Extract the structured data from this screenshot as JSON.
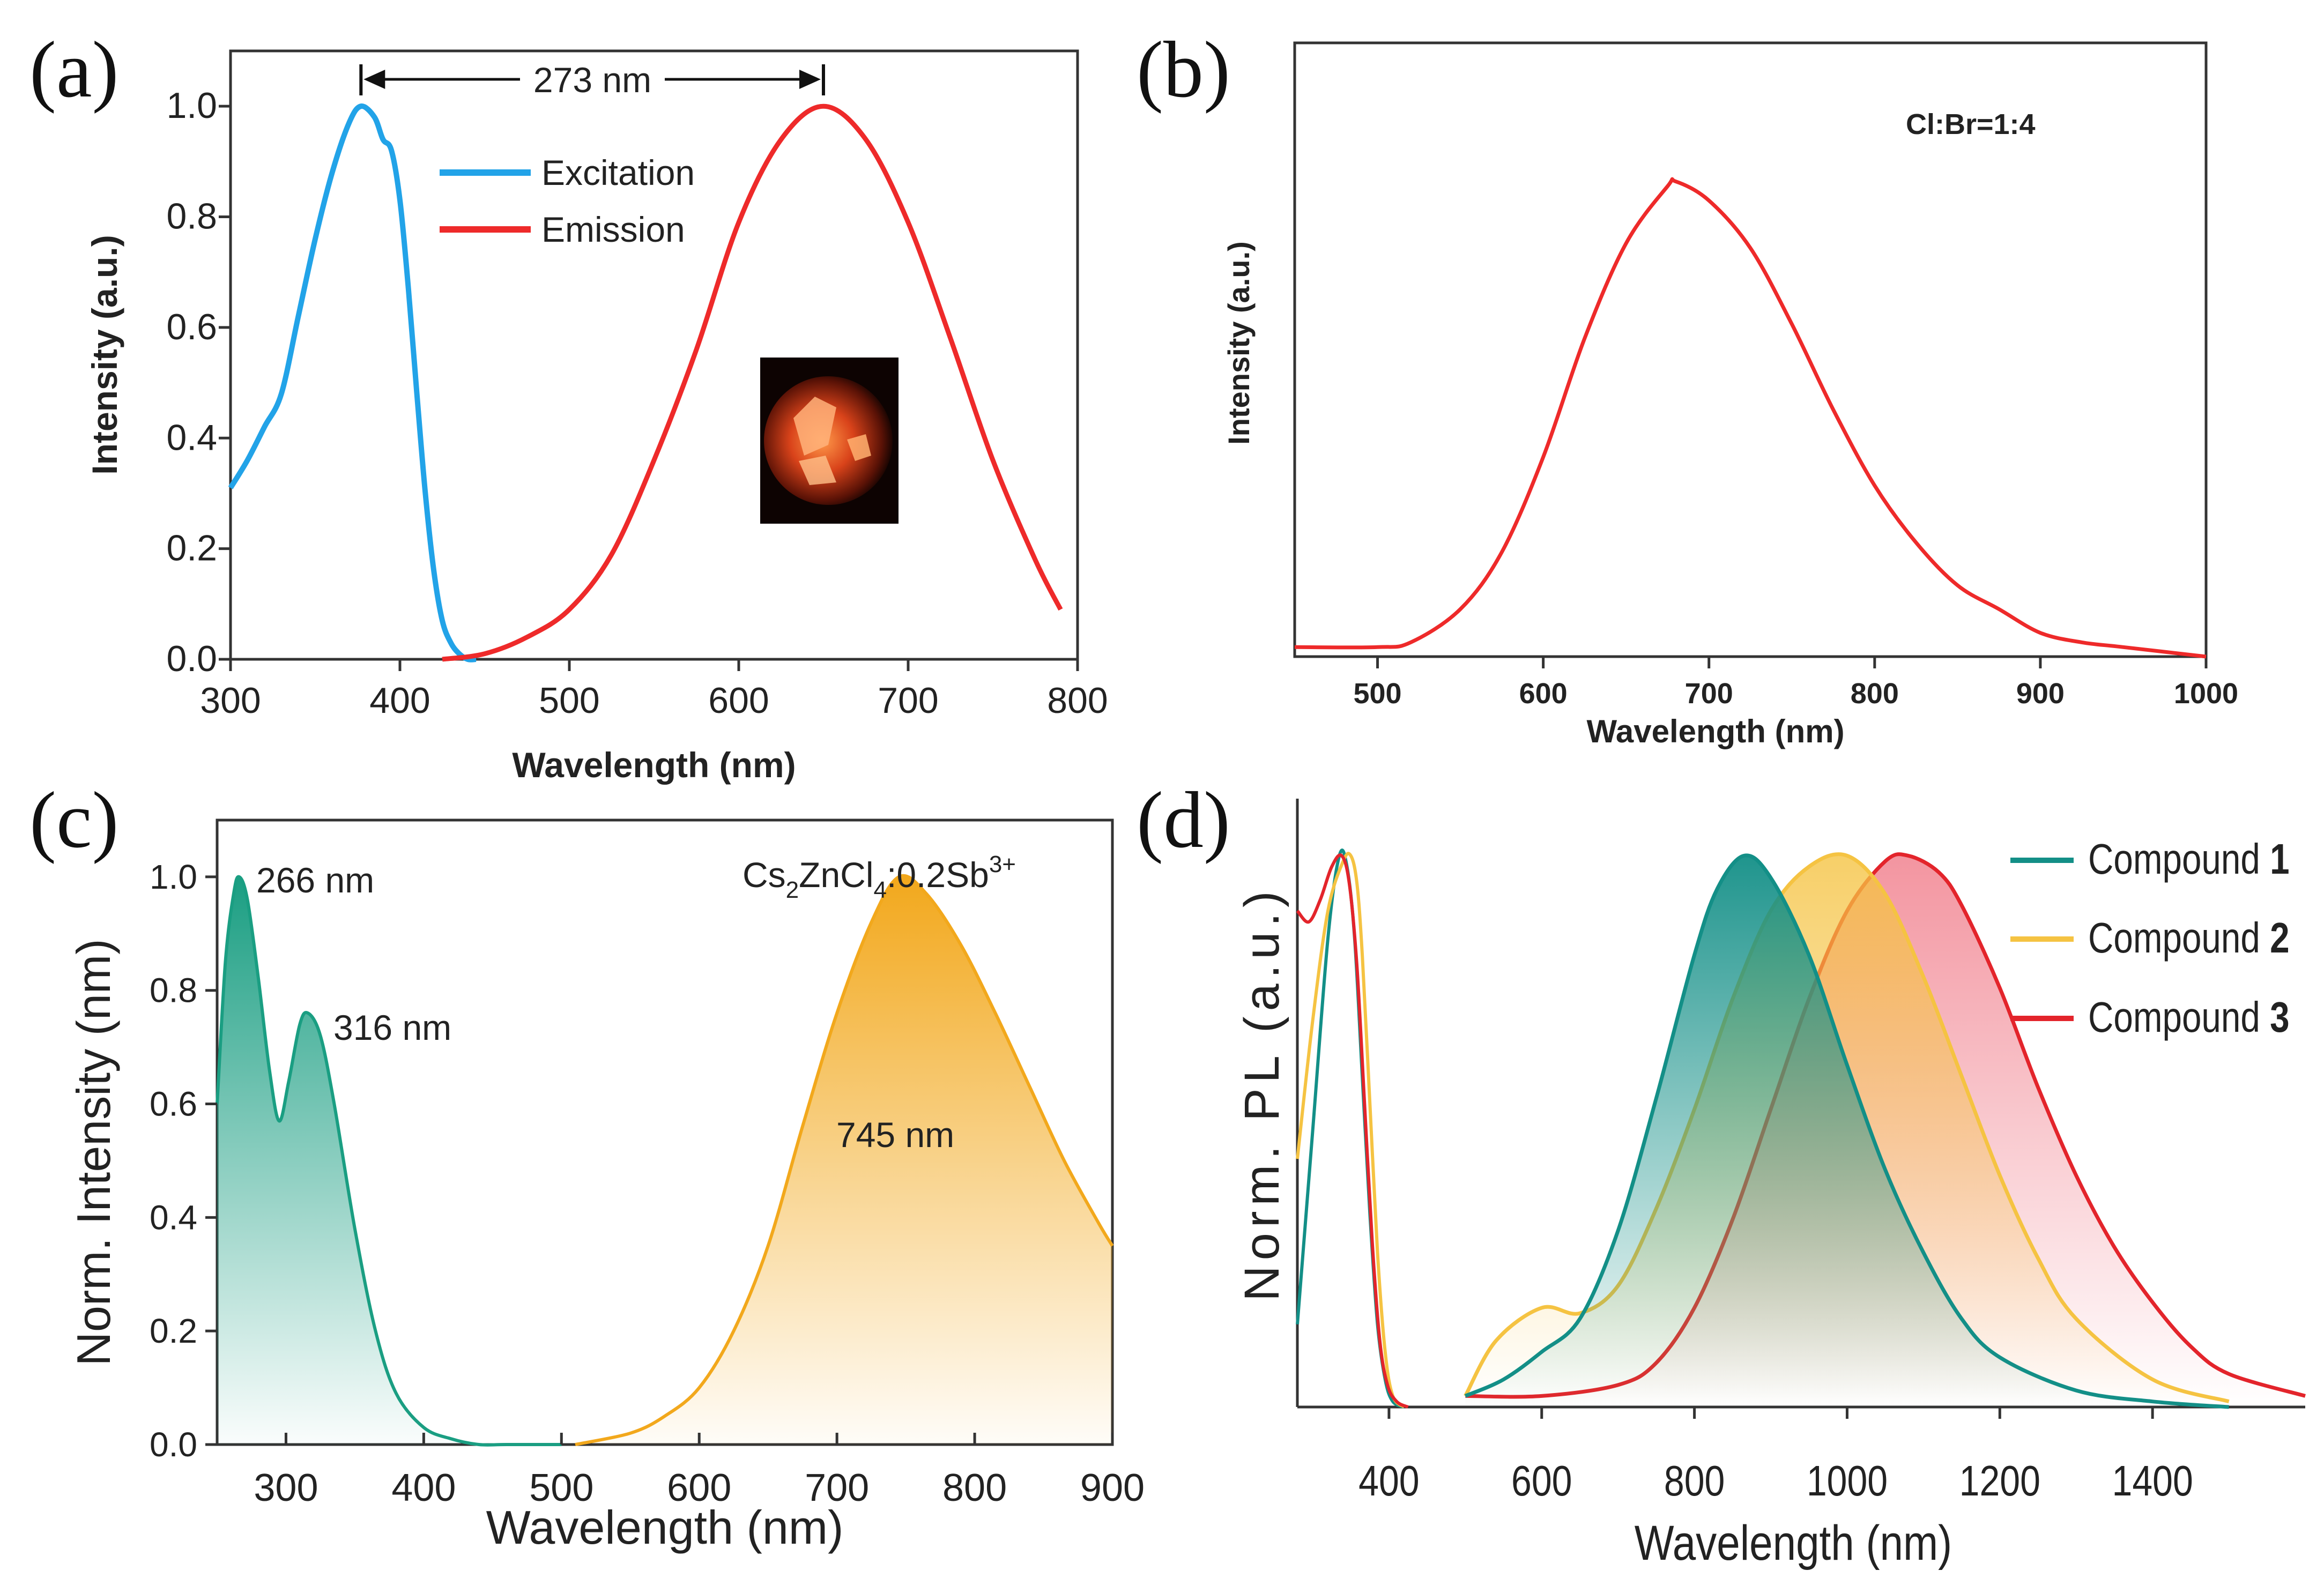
{
  "colors": {
    "excitation": "#22a3e8",
    "emission": "#ee2a2a",
    "teal": "#1a9e82",
    "orange": "#f2a81c",
    "c1": "#138f87",
    "c2": "#f5c342",
    "c3": "#e3242b"
  },
  "chart_data": [
    {
      "panel": "(a)",
      "type": "line",
      "xlabel": "Wavelength (nm)",
      "ylabel": "Intensity (a.u.)",
      "xlim": [
        300,
        800
      ],
      "ylim": [
        0,
        1.1
      ],
      "xticks": [
        300,
        400,
        500,
        600,
        700,
        800
      ],
      "yticks": [
        "0.0",
        "0.2",
        "0.4",
        "0.6",
        "0.8",
        "1.0"
      ],
      "legend": {
        "position": "top-center",
        "entries": [
          "Excitation",
          "Emission"
        ]
      },
      "annotation": "273 nm",
      "annotation_span": [
        377,
        650
      ],
      "inset": "photo of red-emitting crystals",
      "series": [
        {
          "name": "Excitation",
          "color_key": "excitation",
          "x": [
            300,
            310,
            320,
            330,
            340,
            350,
            360,
            370,
            377,
            385,
            390,
            395,
            400,
            405,
            410,
            415,
            420,
            425,
            430,
            435,
            440,
            445
          ],
          "y": [
            0.31,
            0.36,
            0.42,
            0.48,
            0.62,
            0.76,
            0.88,
            0.97,
            1.0,
            0.98,
            0.94,
            0.92,
            0.83,
            0.67,
            0.48,
            0.3,
            0.16,
            0.07,
            0.03,
            0.01,
            0.0,
            0.0
          ]
        },
        {
          "name": "Emission",
          "color_key": "emission",
          "x": [
            425,
            450,
            475,
            500,
            525,
            550,
            575,
            600,
            625,
            650,
            675,
            700,
            725,
            750,
            775,
            790
          ],
          "y": [
            0.0,
            0.01,
            0.04,
            0.09,
            0.19,
            0.36,
            0.56,
            0.79,
            0.94,
            1.0,
            0.94,
            0.79,
            0.58,
            0.36,
            0.18,
            0.09
          ]
        }
      ]
    },
    {
      "panel": "(b)",
      "type": "line",
      "xlabel": "Wavelength (nm)",
      "ylabel": "Intensity (a.u.)",
      "xlim": [
        450,
        1000
      ],
      "ylim": [
        0,
        1.1
      ],
      "xticks": [
        500,
        600,
        700,
        800,
        900,
        1000
      ],
      "annotation": "Cl:Br=1:4",
      "series": [
        {
          "name": "Cl:Br=1:4",
          "color_key": "emission",
          "x": [
            450,
            500,
            520,
            550,
            575,
            600,
            625,
            650,
            675,
            680,
            700,
            725,
            750,
            775,
            800,
            825,
            850,
            875,
            900,
            925,
            950,
            1000
          ],
          "y": [
            0.02,
            0.02,
            0.03,
            0.1,
            0.22,
            0.42,
            0.67,
            0.87,
            0.99,
            1.0,
            0.96,
            0.86,
            0.7,
            0.52,
            0.36,
            0.24,
            0.15,
            0.1,
            0.05,
            0.03,
            0.02,
            0.0
          ]
        }
      ]
    },
    {
      "panel": "(c)",
      "type": "area",
      "xlabel": "Wavelength (nm)",
      "ylabel": "Norm. Intensity (nm)",
      "xlim": [
        250,
        900
      ],
      "ylim": [
        0,
        1.1
      ],
      "xticks": [
        300,
        400,
        500,
        600,
        700,
        800,
        900
      ],
      "yticks": [
        "0.0",
        "0.2",
        "0.4",
        "0.6",
        "0.8",
        "1.0"
      ],
      "compound_label": {
        "base": "Cs",
        "sub1": "2",
        "mid": "ZnCl",
        "sub2": "4",
        "tail": ":0.2Sb",
        "sup": "3+"
      },
      "peak_labels": [
        "266 nm",
        "316 nm",
        "745 nm"
      ],
      "series": [
        {
          "name": "Excitation",
          "color_key": "teal",
          "x": [
            250,
            256,
            262,
            266,
            272,
            280,
            288,
            295,
            302,
            310,
            316,
            325,
            335,
            350,
            365,
            380,
            400,
            420,
            440,
            460,
            500
          ],
          "y": [
            0.6,
            0.85,
            0.97,
            1.0,
            0.96,
            0.82,
            0.66,
            0.57,
            0.64,
            0.74,
            0.76,
            0.72,
            0.6,
            0.38,
            0.2,
            0.09,
            0.03,
            0.01,
            0.0,
            0.0,
            0.0
          ]
        },
        {
          "name": "Emission",
          "color_key": "orange",
          "x": [
            510,
            550,
            575,
            600,
            625,
            650,
            675,
            700,
            725,
            745,
            765,
            790,
            815,
            840,
            865,
            890,
            900
          ],
          "y": [
            0.0,
            0.02,
            0.05,
            0.1,
            0.2,
            0.35,
            0.56,
            0.76,
            0.92,
            1.0,
            0.97,
            0.88,
            0.76,
            0.63,
            0.5,
            0.39,
            0.35
          ]
        }
      ]
    },
    {
      "panel": "(d)",
      "type": "area",
      "xlabel": "Wavelength (nm)",
      "ylabel": "Norm. PL (a.u.)",
      "xlim": [
        280,
        1600
      ],
      "ylim": [
        0,
        1.05
      ],
      "xticks": [
        400,
        600,
        800,
        1000,
        1200,
        1400
      ],
      "legend": {
        "position": "top-right",
        "entries": [
          {
            "label": "Compound ",
            "num": "1",
            "color_key": "c1"
          },
          {
            "label": "Compound ",
            "num": "2",
            "color_key": "c2"
          },
          {
            "label": "Compound ",
            "num": "3",
            "color_key": "c3"
          }
        ]
      },
      "series": [
        {
          "name": "Compound 1 excitation",
          "color_key": "c1",
          "x": [
            280,
            300,
            320,
            335,
            345,
            355,
            365,
            375,
            385,
            395,
            405,
            420
          ],
          "y": [
            0.15,
            0.5,
            0.85,
            1.0,
            0.98,
            0.85,
            0.6,
            0.35,
            0.15,
            0.05,
            0.01,
            0.0
          ]
        },
        {
          "name": "Compound 2 excitation",
          "color_key": "c2",
          "x": [
            280,
            300,
            320,
            340,
            350,
            358,
            365,
            375,
            385,
            395,
            405,
            420
          ],
          "y": [
            0.45,
            0.7,
            0.9,
            0.99,
            1.0,
            0.95,
            0.82,
            0.55,
            0.28,
            0.1,
            0.02,
            0.0
          ]
        },
        {
          "name": "Compound 3 excitation",
          "color_key": "c3",
          "x": [
            280,
            295,
            310,
            325,
            338,
            348,
            358,
            368,
            378,
            388,
            398,
            410,
            425
          ],
          "y": [
            0.9,
            0.88,
            0.92,
            0.98,
            1.0,
            0.95,
            0.8,
            0.55,
            0.3,
            0.12,
            0.04,
            0.01,
            0.0
          ]
        },
        {
          "name": "Compound 1",
          "color_key": "c1",
          "x": [
            500,
            550,
            600,
            650,
            700,
            750,
            800,
            830,
            865,
            900,
            950,
            1000,
            1050,
            1100,
            1150,
            1200,
            1300,
            1400,
            1500
          ],
          "y": [
            0.02,
            0.05,
            0.1,
            0.16,
            0.32,
            0.56,
            0.82,
            0.94,
            1.0,
            0.96,
            0.82,
            0.62,
            0.43,
            0.28,
            0.16,
            0.09,
            0.03,
            0.01,
            0.0
          ]
        },
        {
          "name": "Compound 2",
          "color_key": "c2",
          "x": [
            500,
            540,
            600,
            650,
            700,
            750,
            800,
            850,
            900,
            950,
            1000,
            1050,
            1100,
            1150,
            1200,
            1250,
            1300,
            1400,
            1500
          ],
          "y": [
            0.02,
            0.12,
            0.18,
            0.17,
            0.22,
            0.36,
            0.54,
            0.74,
            0.9,
            0.98,
            1.0,
            0.93,
            0.78,
            0.6,
            0.42,
            0.27,
            0.16,
            0.05,
            0.01
          ]
        },
        {
          "name": "Compound 3",
          "color_key": "c3",
          "x": [
            500,
            600,
            700,
            750,
            800,
            850,
            900,
            950,
            1000,
            1050,
            1080,
            1120,
            1150,
            1200,
            1250,
            1300,
            1350,
            1400,
            1450,
            1500,
            1600
          ],
          "y": [
            0.02,
            0.02,
            0.04,
            0.08,
            0.18,
            0.34,
            0.54,
            0.74,
            0.9,
            0.99,
            1.0,
            0.97,
            0.91,
            0.76,
            0.58,
            0.42,
            0.29,
            0.19,
            0.11,
            0.06,
            0.02
          ]
        }
      ]
    }
  ]
}
